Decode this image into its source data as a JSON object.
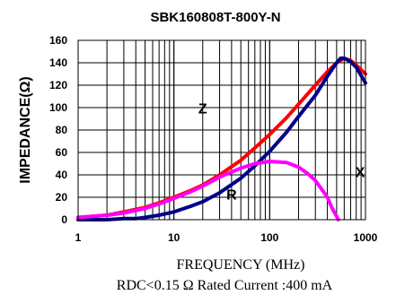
{
  "chart_data": {
    "type": "line",
    "title": "SBK160808T-800Y-N",
    "xlabel": "FREQUENCY (MHz)",
    "ylabel": "IMPEDANCE(Ω)",
    "footnote": "RDC<0.15 Ω Rated Current :400 mA",
    "x_scale": "log",
    "xlim": [
      1,
      1000
    ],
    "ylim": [
      0,
      160
    ],
    "x_ticks": [
      1,
      10,
      100,
      1000
    ],
    "x_tick_labels": [
      "1",
      "10",
      "100",
      "1000"
    ],
    "y_ticks": [
      0,
      20,
      40,
      60,
      80,
      100,
      120,
      140,
      160
    ],
    "y_tick_labels": [
      "0",
      "20",
      "40",
      "60",
      "80",
      "100",
      "120",
      "140",
      "160"
    ],
    "grid": true,
    "series": [
      {
        "name": "Z",
        "color": "#ff0000",
        "x": [
          1,
          2,
          3,
          5,
          7,
          10,
          15,
          20,
          30,
          50,
          70,
          100,
          150,
          200,
          300,
          400,
          500,
          600,
          700,
          800,
          1000
        ],
        "y": [
          2,
          4,
          7,
          11,
          15,
          20,
          26,
          31,
          40,
          53,
          64,
          76,
          91,
          103,
          120,
          132,
          140,
          144,
          142,
          138,
          130
        ]
      },
      {
        "name": "R",
        "color": "#00008b",
        "x": [
          1,
          2,
          3,
          4,
          5,
          7,
          10,
          15,
          20,
          30,
          50,
          70,
          100,
          150,
          200,
          300,
          400,
          500,
          550,
          600,
          700,
          800,
          1000
        ],
        "y": [
          0,
          0,
          1,
          1,
          2,
          4,
          7,
          12,
          16,
          24,
          37,
          48,
          61,
          78,
          92,
          111,
          128,
          140,
          144,
          144,
          141,
          136,
          122
        ]
      },
      {
        "name": "X",
        "color": "#ff00ff",
        "x": [
          1,
          2,
          3,
          5,
          7,
          10,
          15,
          20,
          30,
          50,
          70,
          100,
          150,
          200,
          250,
          300,
          400,
          450,
          500,
          520
        ],
        "y": [
          2,
          4,
          6,
          10,
          14,
          19,
          25,
          30,
          38,
          46,
          50,
          52,
          51,
          47,
          41,
          35,
          20,
          10,
          3,
          0
        ]
      }
    ],
    "annotations": [
      {
        "text": "Z",
        "x": 20,
        "y": 95
      },
      {
        "text": "R",
        "x": 40,
        "y": 18
      },
      {
        "text": "X",
        "x": 880,
        "y": 38
      }
    ]
  }
}
